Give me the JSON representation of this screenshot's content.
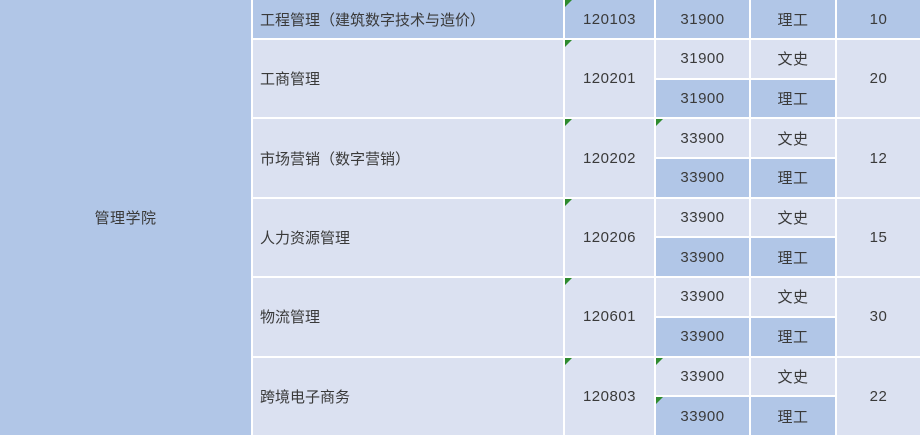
{
  "table": {
    "college": "管理学院",
    "rows": [
      {
        "major": "工程管理（建筑数字技术与造价）",
        "code": "120103",
        "count": "10",
        "entries": [
          {
            "fee": "31900",
            "type": "理工"
          }
        ]
      },
      {
        "major": "工商管理",
        "code": "120201",
        "count": "20",
        "entries": [
          {
            "fee": "31900",
            "type": "文史"
          },
          {
            "fee": "31900",
            "type": "理工"
          }
        ]
      },
      {
        "major": "市场营销（数字营销）",
        "code": "120202",
        "count": "12",
        "entries": [
          {
            "fee": "33900",
            "type": "文史"
          },
          {
            "fee": "33900",
            "type": "理工"
          }
        ]
      },
      {
        "major": "人力资源管理",
        "code": "120206",
        "count": "15",
        "entries": [
          {
            "fee": "33900",
            "type": "文史"
          },
          {
            "fee": "33900",
            "type": "理工"
          }
        ]
      },
      {
        "major": "物流管理",
        "code": "120601",
        "count": "30",
        "entries": [
          {
            "fee": "33900",
            "type": "文史"
          },
          {
            "fee": "33900",
            "type": "理工"
          }
        ]
      },
      {
        "major": "跨境电子商务",
        "code": "120803",
        "count": "22",
        "entries": [
          {
            "fee": "33900",
            "type": "文史"
          },
          {
            "fee": "33900",
            "type": "理工"
          }
        ]
      }
    ]
  },
  "colors": {
    "cell_blue": "#b1c6e7",
    "cell_light": "#dbe1f1",
    "gridline": "#ffffff",
    "text": "#3a3a3a",
    "error_marker_green": "#2e8b2e"
  },
  "markers": {
    "code_cells_with_marker": [
      "120103",
      "120201",
      "120202",
      "120206",
      "120601",
      "120803"
    ],
    "fee_cells_with_marker": [
      "120202:文史",
      "120803:文史",
      "120803:理工"
    ]
  }
}
